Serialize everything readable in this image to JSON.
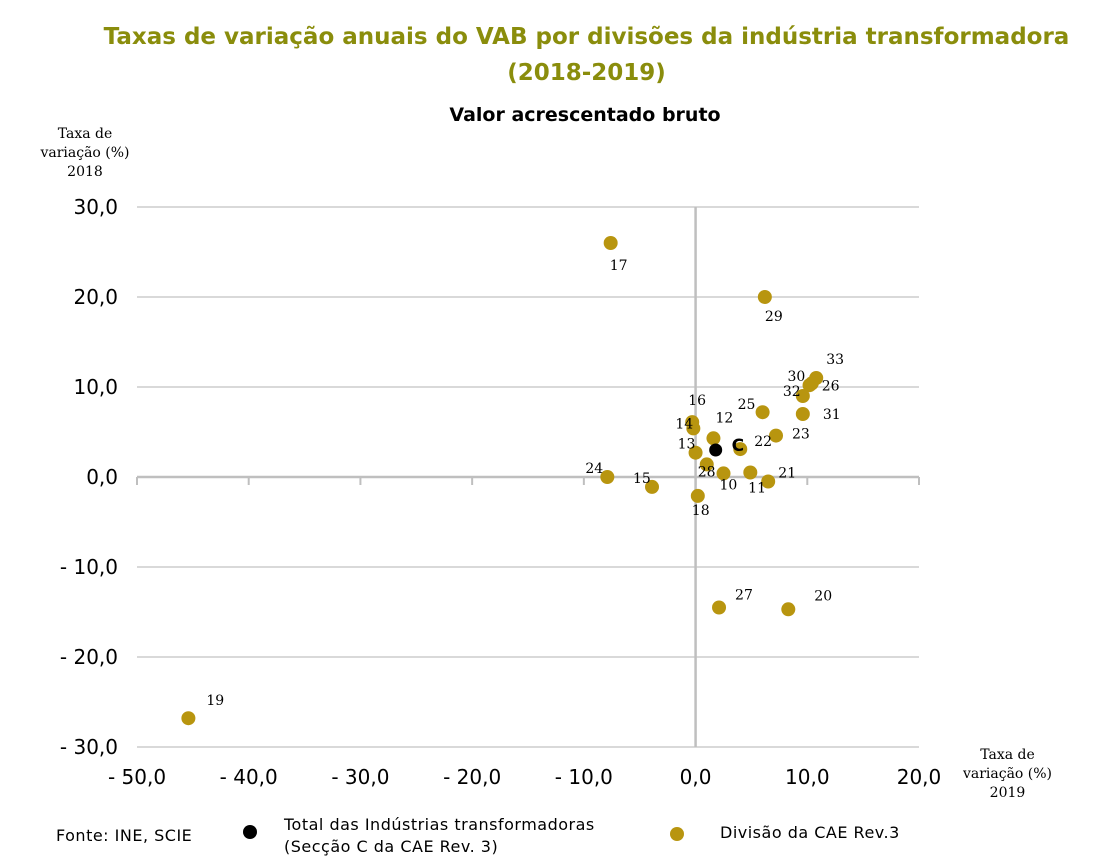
{
  "chart_data": {
    "type": "scatter",
    "title_line1": "Taxas de variação anuais do VAB por divisões da indústria transformadora",
    "title_line2": "(2018-2019)",
    "subtitle": "Valor acrescentado bruto",
    "ylabel": [
      "Taxa de",
      "variação (%)",
      "2018"
    ],
    "xlabel": [
      "Taxa de",
      "variação (%)",
      "2019"
    ],
    "xlim": [
      -50,
      20
    ],
    "ylim": [
      -30,
      30
    ],
    "x_ticks": [
      -50,
      -40,
      -30,
      -20,
      -10,
      0,
      10,
      20
    ],
    "y_ticks": [
      30,
      20,
      10,
      0,
      -10,
      -20,
      -30
    ],
    "x_tick_labels": [
      "- 50,0",
      "- 40,0",
      "- 30,0",
      "- 20,0",
      "- 10,0",
      "0,0",
      "10,0",
      "20,0"
    ],
    "y_tick_labels": [
      "30,0",
      "20,0",
      "10,0",
      "0,0",
      "- 10,0",
      "- 20,0",
      "- 30,0"
    ],
    "grid": true,
    "series": [
      {
        "name": "Divisão da CAE Rev.3",
        "color": "#b8950f",
        "points": [
          {
            "label": "17",
            "x": -7.6,
            "y": 26.0
          },
          {
            "label": "29",
            "x": 6.2,
            "y": 20.0
          },
          {
            "label": "33",
            "x": 10.8,
            "y": 11.0
          },
          {
            "label": "30",
            "x": 10.2,
            "y": 10.2
          },
          {
            "label": "26",
            "x": 10.4,
            "y": 10.4
          },
          {
            "label": "32",
            "x": 9.6,
            "y": 9.0
          },
          {
            "label": "31",
            "x": 9.6,
            "y": 7.0
          },
          {
            "label": "25",
            "x": 6.0,
            "y": 7.2
          },
          {
            "label": "16",
            "x": -0.3,
            "y": 6.1
          },
          {
            "label": "14",
            "x": -0.2,
            "y": 5.4
          },
          {
            "label": "12",
            "x": 1.6,
            "y": 4.3
          },
          {
            "label": "23",
            "x": 7.2,
            "y": 4.6
          },
          {
            "label": "22",
            "x": 4.0,
            "y": 3.1
          },
          {
            "label": "13",
            "x": 0.0,
            "y": 2.7
          },
          {
            "label": "28",
            "x": 1.0,
            "y": 1.4
          },
          {
            "label": "10",
            "x": 2.5,
            "y": 0.4
          },
          {
            "label": "21",
            "x": 4.9,
            "y": 0.5
          },
          {
            "label": "11",
            "x": 6.5,
            "y": -0.5
          },
          {
            "label": "24",
            "x": -7.9,
            "y": -0.0
          },
          {
            "label": "15",
            "x": -3.9,
            "y": -1.1
          },
          {
            "label": "18",
            "x": 0.2,
            "y": -2.1
          },
          {
            "label": "27",
            "x": 2.1,
            "y": -14.5
          },
          {
            "label": "20",
            "x": 8.3,
            "y": -14.7
          },
          {
            "label": "19",
            "x": -45.4,
            "y": -26.8
          }
        ]
      },
      {
        "name": "Total das Indústrias transformadoras (Secção C da CAE Rev. 3)",
        "color": "#000000",
        "points": [
          {
            "label": "C",
            "x": 1.8,
            "y": 3.0
          }
        ]
      }
    ]
  },
  "source": "Fonte: INE, SCIE",
  "legend": {
    "total_line1": "Total das Indústrias transformadoras",
    "total_line2": "(Secção C da CAE Rev. 3)",
    "division": "Divisão da CAE Rev.3"
  },
  "colors": {
    "title": "#8a8d0c",
    "division_marker": "#b8950f",
    "total_marker": "#000000",
    "grid": "#d9d9d9"
  }
}
